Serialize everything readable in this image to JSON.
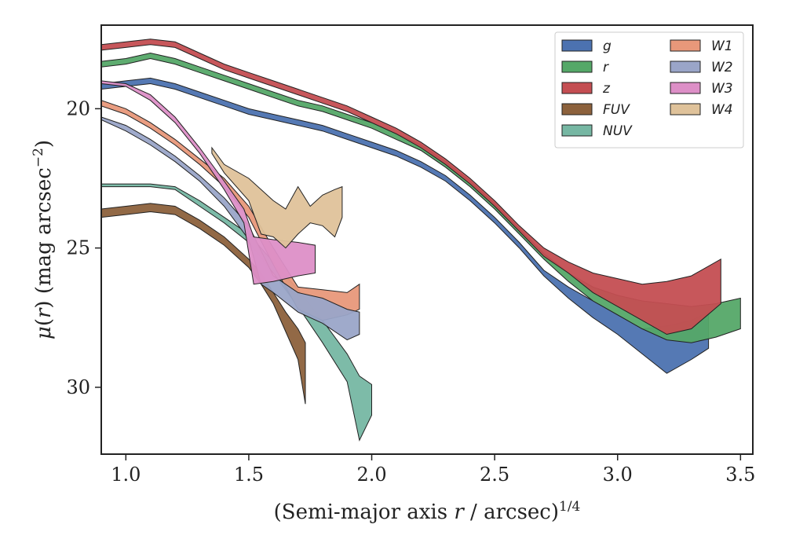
{
  "chart_data": {
    "type": "area",
    "title": "",
    "xlabel": "(Semi-major axis r / arcsec)^1/4",
    "ylabel": "μ(r) (mag arcsec^−2)",
    "xlim": [
      0.9,
      3.55
    ],
    "ylim": [
      32.4,
      17.0
    ],
    "y_inverted": true,
    "grid": false,
    "legend_position": "top-right",
    "xticks": [
      1.0,
      1.5,
      2.0,
      2.5,
      3.0,
      3.5
    ],
    "xtick_labels": [
      "1.0",
      "1.5",
      "2.0",
      "2.5",
      "3.0",
      "3.5"
    ],
    "yticks": [
      20,
      25,
      30
    ],
    "ytick_labels": [
      "20",
      "25",
      "30"
    ],
    "series": [
      {
        "name": "g",
        "color": "#4c72b0",
        "points": [
          [
            0.9,
            19.1,
            19.3
          ],
          [
            1.0,
            19.0,
            19.2
          ],
          [
            1.1,
            18.9,
            19.1
          ],
          [
            1.2,
            19.1,
            19.3
          ],
          [
            1.3,
            19.4,
            19.6
          ],
          [
            1.4,
            19.7,
            19.9
          ],
          [
            1.5,
            20.0,
            20.2
          ],
          [
            1.6,
            20.2,
            20.4
          ],
          [
            1.7,
            20.4,
            20.6
          ],
          [
            1.8,
            20.6,
            20.8
          ],
          [
            1.9,
            20.9,
            21.1
          ],
          [
            2.0,
            21.2,
            21.4
          ],
          [
            2.1,
            21.5,
            21.7
          ],
          [
            2.2,
            21.9,
            22.1
          ],
          [
            2.3,
            22.4,
            22.6
          ],
          [
            2.4,
            23.1,
            23.3
          ],
          [
            2.5,
            23.9,
            24.1
          ],
          [
            2.6,
            24.8,
            25.0
          ],
          [
            2.7,
            25.8,
            26.0
          ],
          [
            2.8,
            26.4,
            26.8
          ],
          [
            2.9,
            26.9,
            27.5
          ],
          [
            3.0,
            27.4,
            28.1
          ],
          [
            3.1,
            27.9,
            28.8
          ],
          [
            3.2,
            27.8,
            29.5
          ],
          [
            3.3,
            27.6,
            29.0
          ],
          [
            3.37,
            27.3,
            28.6
          ]
        ]
      },
      {
        "name": "r",
        "color": "#55a868",
        "points": [
          [
            0.9,
            18.3,
            18.5
          ],
          [
            1.0,
            18.2,
            18.4
          ],
          [
            1.1,
            18.0,
            18.2
          ],
          [
            1.2,
            18.2,
            18.4
          ],
          [
            1.3,
            18.5,
            18.7
          ],
          [
            1.4,
            18.8,
            19.0
          ],
          [
            1.5,
            19.1,
            19.3
          ],
          [
            1.6,
            19.4,
            19.6
          ],
          [
            1.7,
            19.7,
            19.9
          ],
          [
            1.8,
            19.9,
            20.1
          ],
          [
            1.9,
            20.2,
            20.4
          ],
          [
            2.0,
            20.5,
            20.7
          ],
          [
            2.1,
            20.9,
            21.1
          ],
          [
            2.2,
            21.3,
            21.5
          ],
          [
            2.3,
            21.9,
            22.1
          ],
          [
            2.4,
            22.6,
            22.8
          ],
          [
            2.5,
            23.4,
            23.6
          ],
          [
            2.6,
            24.3,
            24.5
          ],
          [
            2.7,
            25.2,
            25.4
          ],
          [
            2.8,
            25.9,
            26.2
          ],
          [
            2.9,
            26.4,
            26.9
          ],
          [
            3.0,
            26.7,
            27.4
          ],
          [
            3.1,
            26.9,
            27.9
          ],
          [
            3.2,
            27.0,
            28.3
          ],
          [
            3.3,
            27.1,
            28.4
          ],
          [
            3.4,
            27.0,
            28.2
          ],
          [
            3.5,
            26.8,
            27.9
          ]
        ]
      },
      {
        "name": "z",
        "color": "#c44e52",
        "points": [
          [
            0.9,
            17.7,
            17.9
          ],
          [
            1.0,
            17.6,
            17.8
          ],
          [
            1.1,
            17.5,
            17.7
          ],
          [
            1.2,
            17.6,
            17.8
          ],
          [
            1.3,
            18.0,
            18.2
          ],
          [
            1.4,
            18.4,
            18.6
          ],
          [
            1.5,
            18.7,
            18.9
          ],
          [
            1.6,
            19.0,
            19.2
          ],
          [
            1.7,
            19.3,
            19.5
          ],
          [
            1.8,
            19.6,
            19.8
          ],
          [
            1.9,
            19.9,
            20.1
          ],
          [
            2.0,
            20.3,
            20.5
          ],
          [
            2.1,
            20.7,
            20.9
          ],
          [
            2.2,
            21.2,
            21.4
          ],
          [
            2.3,
            21.8,
            22.0
          ],
          [
            2.4,
            22.5,
            22.7
          ],
          [
            2.5,
            23.3,
            23.5
          ],
          [
            2.6,
            24.2,
            24.4
          ],
          [
            2.7,
            25.0,
            25.3
          ],
          [
            2.8,
            25.5,
            25.9
          ],
          [
            2.9,
            25.9,
            26.6
          ],
          [
            3.0,
            26.1,
            27.1
          ],
          [
            3.1,
            26.3,
            27.6
          ],
          [
            3.2,
            26.2,
            28.1
          ],
          [
            3.3,
            26.0,
            27.9
          ],
          [
            3.42,
            25.4,
            27.0
          ]
        ]
      },
      {
        "name": "FUV",
        "color": "#8c613c",
        "points": [
          [
            0.9,
            23.6,
            23.9
          ],
          [
            1.0,
            23.5,
            23.8
          ],
          [
            1.1,
            23.4,
            23.7
          ],
          [
            1.2,
            23.5,
            23.8
          ],
          [
            1.3,
            24.0,
            24.3
          ],
          [
            1.4,
            24.6,
            24.9
          ],
          [
            1.5,
            25.4,
            25.7
          ],
          [
            1.55,
            25.9,
            26.3
          ],
          [
            1.6,
            26.6,
            27.0
          ],
          [
            1.65,
            27.3,
            28.0
          ],
          [
            1.7,
            27.9,
            29.0
          ],
          [
            1.73,
            28.4,
            30.6
          ]
        ]
      },
      {
        "name": "NUV",
        "color": "#76b7a3",
        "points": [
          [
            0.9,
            22.7,
            22.8
          ],
          [
            1.0,
            22.7,
            22.8
          ],
          [
            1.1,
            22.7,
            22.8
          ],
          [
            1.2,
            22.8,
            22.9
          ],
          [
            1.3,
            23.3,
            23.5
          ],
          [
            1.4,
            23.9,
            24.1
          ],
          [
            1.5,
            24.5,
            24.8
          ],
          [
            1.6,
            25.5,
            25.9
          ],
          [
            1.7,
            26.5,
            27.1
          ],
          [
            1.8,
            27.6,
            28.4
          ],
          [
            1.9,
            28.8,
            29.8
          ],
          [
            1.95,
            29.6,
            31.9
          ],
          [
            2.0,
            29.9,
            31.0
          ]
        ]
      },
      {
        "name": "W1",
        "color": "#e8987a",
        "points": [
          [
            0.9,
            19.7,
            19.9
          ],
          [
            1.0,
            20.0,
            20.2
          ],
          [
            1.1,
            20.5,
            20.7
          ],
          [
            1.2,
            21.1,
            21.3
          ],
          [
            1.3,
            21.8,
            22.0
          ],
          [
            1.4,
            22.5,
            22.8
          ],
          [
            1.5,
            23.5,
            23.9
          ],
          [
            1.6,
            25.0,
            25.6
          ],
          [
            1.7,
            26.4,
            27.2
          ],
          [
            1.8,
            26.5,
            27.6
          ],
          [
            1.9,
            26.6,
            27.4
          ],
          [
            1.95,
            26.3,
            27.2
          ]
        ]
      },
      {
        "name": "W2",
        "color": "#9aa5c8",
        "points": [
          [
            0.9,
            20.3,
            20.4
          ],
          [
            1.0,
            20.6,
            20.8
          ],
          [
            1.1,
            21.1,
            21.3
          ],
          [
            1.2,
            21.7,
            21.9
          ],
          [
            1.3,
            22.4,
            22.6
          ],
          [
            1.4,
            23.2,
            23.5
          ],
          [
            1.5,
            24.2,
            24.7
          ],
          [
            1.55,
            25.1,
            26.3
          ],
          [
            1.6,
            26.0,
            26.6
          ],
          [
            1.7,
            26.6,
            27.3
          ],
          [
            1.8,
            26.8,
            27.7
          ],
          [
            1.9,
            27.2,
            28.3
          ],
          [
            1.95,
            27.3,
            28.1
          ]
        ]
      },
      {
        "name": "W3",
        "color": "#dd8fc7",
        "points": [
          [
            0.9,
            19.0,
            19.1
          ],
          [
            1.0,
            19.1,
            19.2
          ],
          [
            1.1,
            19.5,
            19.7
          ],
          [
            1.2,
            20.3,
            20.5
          ],
          [
            1.3,
            21.4,
            21.6
          ],
          [
            1.4,
            22.6,
            22.9
          ],
          [
            1.48,
            23.6,
            24.1
          ],
          [
            1.52,
            24.6,
            26.3
          ],
          [
            1.6,
            24.7,
            26.2
          ],
          [
            1.7,
            24.8,
            26.0
          ],
          [
            1.77,
            24.9,
            25.9
          ]
        ]
      },
      {
        "name": "W4",
        "color": "#dfc29a",
        "points": [
          [
            1.35,
            21.4,
            21.6
          ],
          [
            1.4,
            22.0,
            22.3
          ],
          [
            1.5,
            22.5,
            23.3
          ],
          [
            1.55,
            22.9,
            24.5
          ],
          [
            1.6,
            23.3,
            24.6
          ],
          [
            1.65,
            23.6,
            25.0
          ],
          [
            1.7,
            22.8,
            24.5
          ],
          [
            1.75,
            23.5,
            24.1
          ],
          [
            1.8,
            23.1,
            24.2
          ],
          [
            1.85,
            22.9,
            24.6
          ],
          [
            1.88,
            22.8,
            23.9
          ]
        ]
      }
    ],
    "legend": {
      "columns": 2,
      "entries": [
        "g",
        "r",
        "z",
        "FUV",
        "NUV",
        "W1",
        "W2",
        "W3",
        "W4"
      ]
    }
  }
}
